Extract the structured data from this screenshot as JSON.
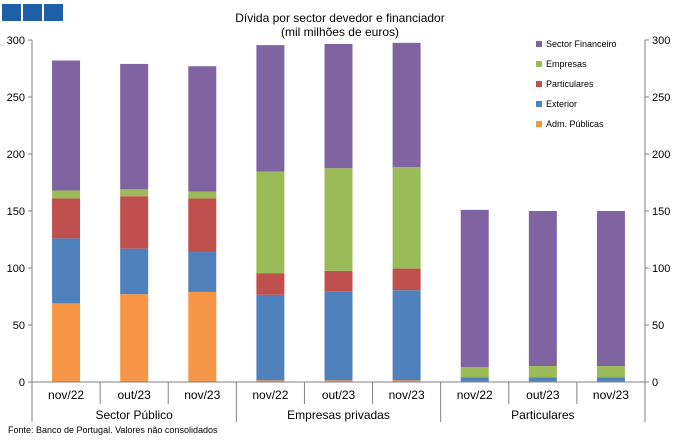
{
  "chart_data": {
    "type": "stacked-bar",
    "title": "Dívida por sector devedor e financiador",
    "subtitle": "(mil milhões de euros)",
    "ylim": [
      0,
      300
    ],
    "yticks": [
      0,
      50,
      100,
      150,
      200,
      250,
      300
    ],
    "categories": [
      "nov/22",
      "out/23",
      "nov/23",
      "nov/22",
      "out/23",
      "nov/23",
      "nov/22",
      "out/23",
      "nov/23"
    ],
    "groups": [
      {
        "label": "Sector Público",
        "start": 0,
        "end": 2
      },
      {
        "label": "Empresas privadas",
        "start": 3,
        "end": 5
      },
      {
        "label": "Particulares",
        "start": 6,
        "end": 8
      }
    ],
    "series": [
      {
        "name": "Adm. Públicas",
        "color": "#f79646",
        "values": [
          69,
          77,
          79,
          1.5,
          1.5,
          1.5,
          0.5,
          0.5,
          0.5
        ]
      },
      {
        "name": "Exterior",
        "color": "#4f81bd",
        "values": [
          57,
          40,
          35,
          75,
          78,
          79,
          3,
          3,
          3
        ]
      },
      {
        "name": "Particulares",
        "color": "#c0504d",
        "values": [
          35,
          46,
          47,
          19,
          18,
          19,
          0.5,
          0.5,
          0.5
        ]
      },
      {
        "name": "Empresas",
        "color": "#9bbb59",
        "values": [
          7,
          6,
          6,
          89,
          90,
          89,
          9,
          10,
          10
        ]
      },
      {
        "name": "Sector Financeiro",
        "color": "#8064a2",
        "values": [
          114,
          110,
          110,
          111,
          109,
          109,
          138,
          136,
          136
        ]
      }
    ],
    "legend_order": [
      "Sector Financeiro",
      "Empresas",
      "Particulares",
      "Exterior",
      "Adm. Públicas"
    ]
  },
  "source": "Fonte: Banco de Portugal. Valores não consolidados"
}
